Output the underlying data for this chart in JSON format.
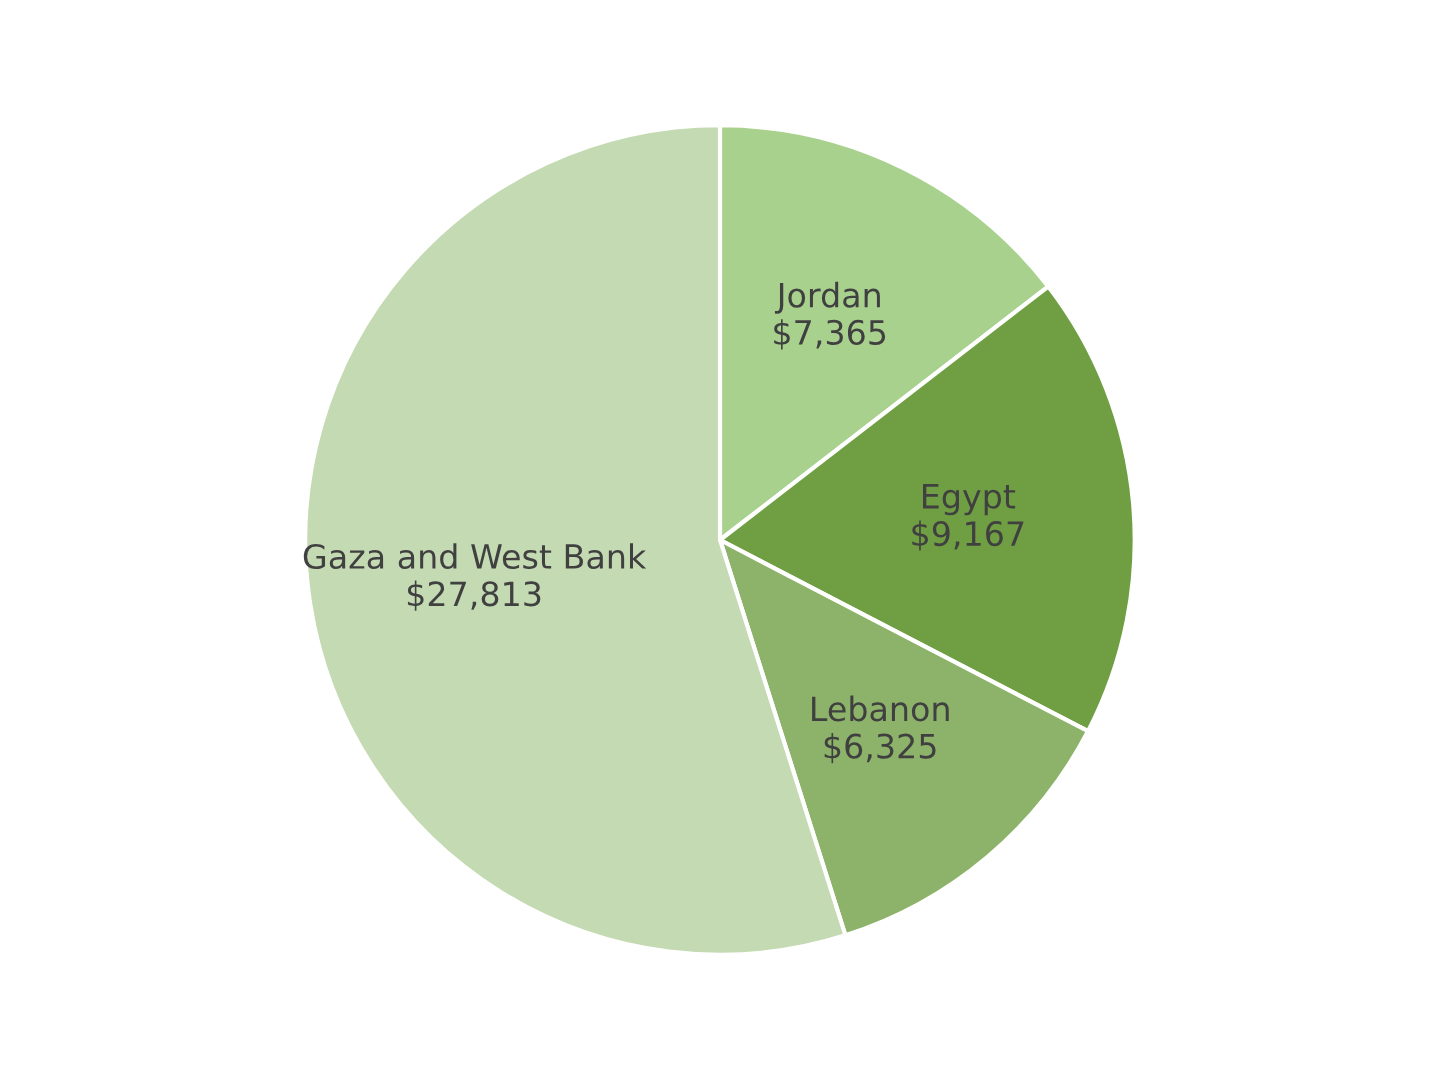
{
  "chart_data": {
    "type": "pie",
    "categories": [
      "Jordan",
      "Egypt",
      "Lebanon",
      "Gaza and West Bank"
    ],
    "values": [
      7365,
      9167,
      6325,
      27813
    ],
    "value_labels": [
      "$7,365",
      "$9,167",
      "$6,325",
      "$27,813"
    ],
    "colors": [
      "#a9d18e",
      "#6f9f42",
      "#8db36a",
      "#c3dab2"
    ],
    "legend": false
  }
}
